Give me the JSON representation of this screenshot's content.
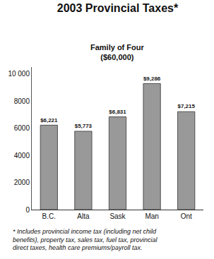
{
  "chart_data": {
    "type": "bar",
    "title": "2003 Provincial Taxes*",
    "subtitle": "Family of Four\n($60,000)",
    "categories": [
      "B.C.",
      "Alta",
      "Sask",
      "Man",
      "Ont"
    ],
    "values": [
      6221,
      5773,
      6831,
      9286,
      7215
    ],
    "value_labels": [
      "$6,221",
      "$5,773",
      "$6,831",
      "$9,286",
      "$7,215"
    ],
    "data_labels": true,
    "color": "#999999",
    "ylim": [
      0,
      10500
    ],
    "yticks": [
      0,
      2000,
      4000,
      6000,
      8000,
      {
        "value": 10000,
        "label": "10 000"
      }
    ],
    "grid": false,
    "annotations": [
      "* Includes provincial income tax (including net child\nbenefits), property tax, sales tax, fuel tax, provincial\ndirect taxes, health care premiums/payroll tax."
    ]
  }
}
